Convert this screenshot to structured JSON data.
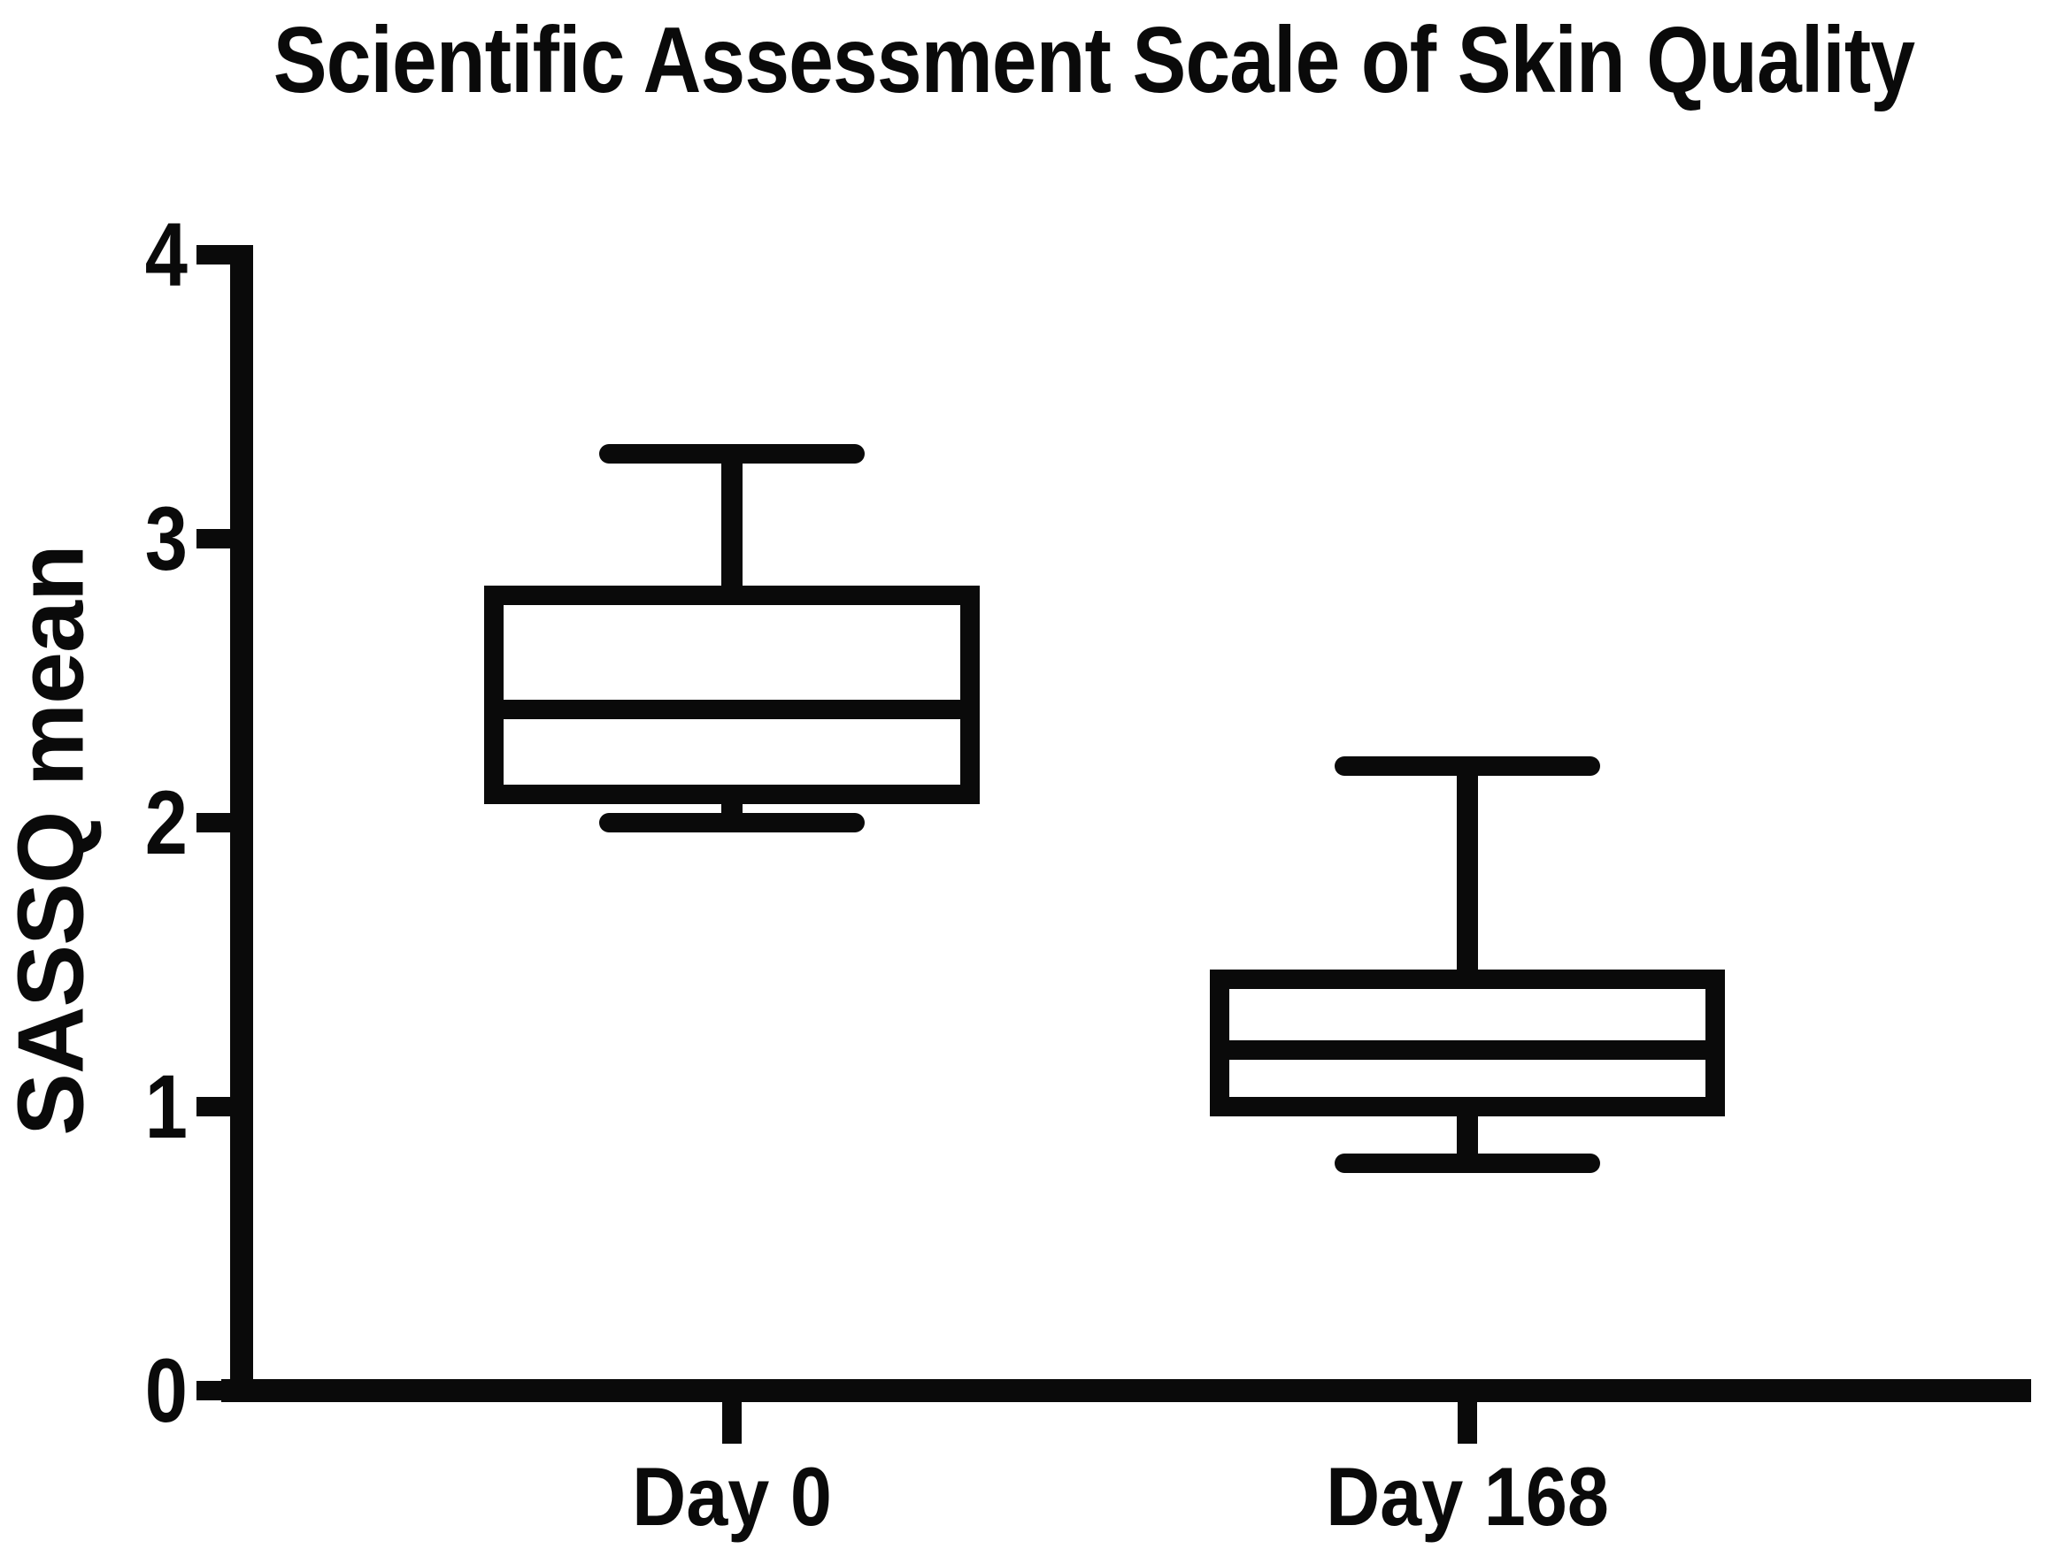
{
  "title": "Scientific Assessment Scale of Skin Quality",
  "chart_data": {
    "type": "box",
    "title": "Scientific Assessment Scale of Skin Quality",
    "ylabel": "SASSQ mean",
    "xlabel": "",
    "ylim": [
      0,
      4
    ],
    "yticks": [
      0,
      1,
      2,
      3,
      4
    ],
    "ytick_labels": [
      "0",
      "1",
      "2",
      "3",
      "4"
    ],
    "categories": [
      "Day 0",
      "Day 168"
    ],
    "grid": false,
    "legend": "none",
    "series": [
      {
        "name": "Day 0",
        "min": 2.0,
        "q1": 2.1,
        "median": 2.4,
        "q3": 2.8,
        "max": 3.3
      },
      {
        "name": "Day 168",
        "min": 0.8,
        "q1": 1.0,
        "median": 1.2,
        "q3": 1.45,
        "max": 2.2
      }
    ],
    "colors": {
      "stroke": "#0a0a0a",
      "box_fill": "#ffffff",
      "background": "#ffffff"
    }
  }
}
